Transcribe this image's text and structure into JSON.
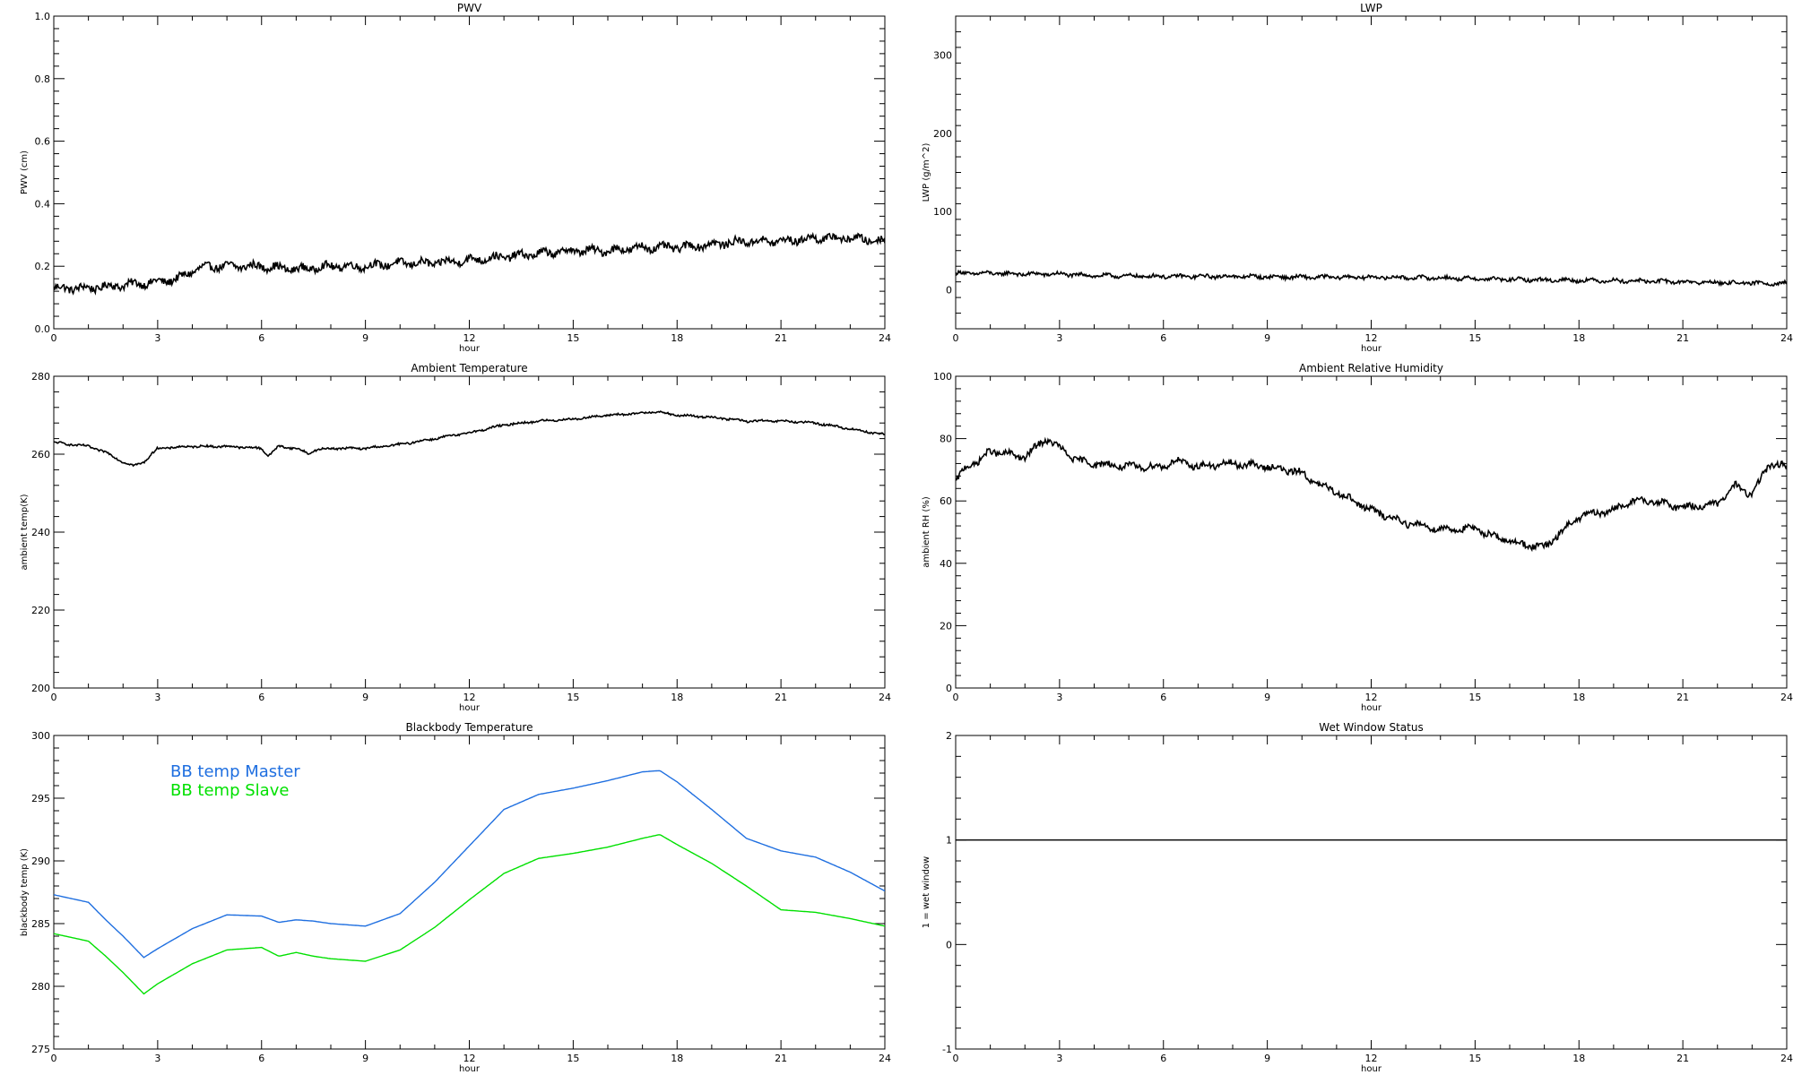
{
  "chart_data": [
    {
      "id": "pwv",
      "type": "line",
      "title": "PWV",
      "xlabel": "hour",
      "ylabel": "PWV (cm)",
      "xlim": [
        0,
        24
      ],
      "ylim": [
        0.0,
        1.0
      ],
      "xticks": [
        0,
        3,
        6,
        9,
        12,
        15,
        18,
        21,
        24
      ],
      "yticks": [
        0.0,
        0.2,
        0.4,
        0.6,
        0.8,
        1.0
      ],
      "ytick_labels": [
        "0.0",
        "0.2",
        "0.4",
        "0.6",
        "0.8",
        "1.0"
      ],
      "series": [
        {
          "color": "#000000",
          "noise": 0.012,
          "x": [
            0,
            1,
            2,
            3,
            3.6,
            4.1,
            4.6,
            5,
            6,
            7,
            8,
            9,
            10,
            11,
            12,
            13,
            14,
            15,
            16,
            17,
            18,
            19,
            20,
            21,
            22,
            23,
            24
          ],
          "y": [
            0.13,
            0.13,
            0.14,
            0.15,
            0.16,
            0.19,
            0.2,
            0.2,
            0.2,
            0.19,
            0.2,
            0.2,
            0.21,
            0.21,
            0.22,
            0.23,
            0.24,
            0.25,
            0.25,
            0.26,
            0.26,
            0.27,
            0.28,
            0.28,
            0.29,
            0.29,
            0.28
          ]
        }
      ]
    },
    {
      "id": "lwp",
      "type": "line",
      "title": "LWP",
      "xlabel": "hour",
      "ylabel": "LWP (g/m^2)",
      "xlim": [
        0,
        24
      ],
      "ylim": [
        -50,
        350
      ],
      "xticks": [
        0,
        3,
        6,
        9,
        12,
        15,
        18,
        21,
        24
      ],
      "yticks": [
        0,
        100,
        200,
        300
      ],
      "ytick_labels": [
        "0",
        "100",
        "200",
        "300"
      ],
      "series": [
        {
          "color": "#000000",
          "noise": 2.2,
          "x": [
            0,
            1,
            2,
            3,
            4,
            6,
            8,
            10,
            12,
            14,
            16,
            18,
            20,
            22,
            24
          ],
          "y": [
            21,
            21,
            20,
            20,
            18,
            17,
            17,
            16,
            16,
            15,
            13,
            12,
            11,
            9,
            8
          ]
        }
      ]
    },
    {
      "id": "ambient-temp",
      "type": "line",
      "title": "Ambient Temperature",
      "xlabel": "hour",
      "ylabel": "ambient temp(K)",
      "xlim": [
        0,
        24
      ],
      "ylim": [
        200,
        280
      ],
      "xticks": [
        0,
        3,
        6,
        9,
        12,
        15,
        18,
        21,
        24
      ],
      "yticks": [
        200,
        220,
        240,
        260,
        280
      ],
      "ytick_labels": [
        "200",
        "220",
        "240",
        "260",
        "280"
      ],
      "series": [
        {
          "color": "#000000",
          "noise": 0.25,
          "x": [
            0,
            0.5,
            1,
            1.5,
            2,
            2.3,
            2.6,
            3,
            4,
            5,
            6,
            6.2,
            6.3,
            6.5,
            7,
            7.4,
            7.5,
            8,
            9,
            10,
            11,
            12,
            13,
            14,
            15,
            16,
            17,
            17.3,
            18,
            19,
            20,
            21,
            22,
            23,
            24
          ],
          "y": [
            263,
            262.5,
            262,
            260.5,
            258,
            257,
            258,
            261.5,
            262,
            262,
            261.5,
            259.5,
            260.5,
            262,
            261.5,
            260,
            261,
            261.5,
            261.5,
            262.5,
            264,
            265.5,
            267.5,
            268.5,
            269,
            270,
            270.5,
            271,
            270,
            269.5,
            268.5,
            268.5,
            268,
            266.5,
            265
          ]
        }
      ]
    },
    {
      "id": "ambient-rh",
      "type": "line",
      "title": "Ambient Relative Humidity",
      "xlabel": "hour",
      "ylabel": "ambient RH (%)",
      "xlim": [
        0,
        24
      ],
      "ylim": [
        0,
        100
      ],
      "xticks": [
        0,
        3,
        6,
        9,
        12,
        15,
        18,
        21,
        24
      ],
      "yticks": [
        0,
        20,
        40,
        60,
        80,
        100
      ],
      "ytick_labels": [
        "0",
        "20",
        "40",
        "60",
        "80",
        "100"
      ],
      "series": [
        {
          "color": "#000000",
          "noise": 1.0,
          "x": [
            0,
            0.3,
            0.7,
            1,
            1.5,
            2,
            2.6,
            3,
            3.5,
            4,
            5,
            6,
            6.3,
            7,
            8,
            9,
            10,
            10.5,
            11,
            12,
            13,
            14,
            15,
            16,
            16.5,
            17,
            17.5,
            18,
            19,
            19.5,
            20,
            21,
            22,
            22.5,
            23,
            23.5,
            24
          ],
          "y": [
            66,
            71,
            73,
            76,
            75,
            74,
            80,
            77,
            73,
            72,
            71,
            71,
            73,
            71,
            72,
            71,
            69,
            65,
            63,
            57,
            53,
            51,
            51,
            47,
            46,
            45,
            50,
            55,
            57,
            60,
            60,
            58,
            59,
            65,
            62,
            72,
            71
          ]
        }
      ]
    },
    {
      "id": "blackbody-temp",
      "type": "line",
      "title": "Blackbody Temperature",
      "xlabel": "hour",
      "ylabel": "blackbody temp (K)",
      "xlim": [
        0,
        24
      ],
      "ylim": [
        275,
        300
      ],
      "xticks": [
        0,
        3,
        6,
        9,
        12,
        15,
        18,
        21,
        24
      ],
      "yticks": [
        275,
        280,
        285,
        290,
        295,
        300
      ],
      "ytick_labels": [
        "275",
        "280",
        "285",
        "290",
        "295",
        "300"
      ],
      "legend": [
        "BB temp Master",
        "BB temp Slave"
      ],
      "legend_colors": [
        "#1f6fe0",
        "#00e000"
      ],
      "series": [
        {
          "name": "BB temp Master",
          "color": "#1f6fe0",
          "noise": 0,
          "x": [
            0,
            1,
            1.5,
            2,
            2.6,
            3,
            3.5,
            4,
            5,
            6,
            6.5,
            7,
            7.5,
            8,
            9,
            10,
            11,
            12,
            13,
            14,
            15,
            16,
            17,
            17.5,
            18,
            19,
            20,
            21,
            22,
            23,
            24
          ],
          "y": [
            287.3,
            286.7,
            285.3,
            284,
            282.3,
            283,
            283.8,
            284.6,
            285.7,
            285.6,
            285.1,
            285.3,
            285.2,
            285,
            284.8,
            285.8,
            288.3,
            291.2,
            294.1,
            295.3,
            295.8,
            296.4,
            297.1,
            297.2,
            296.3,
            294.1,
            291.8,
            290.8,
            290.3,
            289.1,
            287.6
          ]
        },
        {
          "name": "BB temp Slave",
          "color": "#00e000",
          "noise": 0,
          "x": [
            0,
            1,
            1.5,
            2,
            2.6,
            3,
            3.5,
            4,
            5,
            6,
            6.5,
            7,
            7.5,
            8,
            9,
            10,
            11,
            12,
            13,
            14,
            15,
            16,
            17,
            17.5,
            18,
            19,
            20,
            21,
            22,
            23,
            24
          ],
          "y": [
            284.2,
            283.6,
            282.4,
            281.1,
            279.4,
            280.2,
            281,
            281.8,
            282.9,
            283.1,
            282.4,
            282.7,
            282.4,
            282.2,
            282,
            282.9,
            284.7,
            286.9,
            289,
            290.2,
            290.6,
            291.1,
            291.8,
            292.1,
            291.3,
            289.8,
            288,
            286.1,
            285.9,
            285.4,
            284.8
          ]
        }
      ]
    },
    {
      "id": "wet-window",
      "type": "line",
      "title": "Wet Window Status",
      "xlabel": "hour",
      "ylabel": "1 = wet window",
      "xlim": [
        0,
        24
      ],
      "ylim": [
        -1,
        2
      ],
      "xticks": [
        0,
        3,
        6,
        9,
        12,
        15,
        18,
        21,
        24
      ],
      "yticks": [
        -1,
        0,
        1,
        2
      ],
      "ytick_labels": [
        "-1",
        "0",
        "1",
        "2"
      ],
      "series": [
        {
          "color": "#000000",
          "noise": 0,
          "x": [
            0,
            24
          ],
          "y": [
            1,
            1
          ]
        }
      ]
    }
  ]
}
